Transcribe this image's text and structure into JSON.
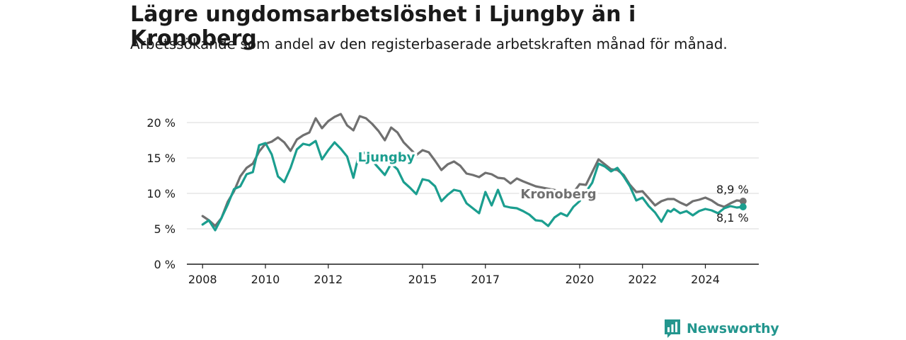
{
  "title": "Lägre ungdomsarbetslöshet i Ljungby än i Kronoberg",
  "subtitle": "Arbetssökande som andel av den registerbaserade arbetskraften månad för månad.",
  "brand": {
    "name": "Newsworthy",
    "icon": "bar-chart-speech-bubble-icon"
  },
  "colors": {
    "ljungby": "#1b9e8f",
    "kronoberg": "#707070",
    "grid": "#d9d9d9",
    "axis": "#1a1a1a"
  },
  "chart_data": {
    "type": "line",
    "title": "Lägre ungdomsarbetslöshet i Ljungby än i Kronoberg",
    "subtitle": "Arbetssökande som andel av den registerbaserade arbetskraften månad för månad.",
    "xlabel": "",
    "ylabel": "",
    "xlim": [
      2007.5,
      2025.7
    ],
    "ylim": [
      0,
      20
    ],
    "y_ticks": [
      {
        "value": 0,
        "label": "0 %"
      },
      {
        "value": 5,
        "label": "5 %"
      },
      {
        "value": 10,
        "label": "10 %"
      },
      {
        "value": 15,
        "label": "15 %"
      },
      {
        "value": 20,
        "label": "20 %"
      }
    ],
    "x_ticks": [
      {
        "value": 2008,
        "label": "2008"
      },
      {
        "value": 2010,
        "label": "2010"
      },
      {
        "value": 2012,
        "label": "2012"
      },
      {
        "value": 2015,
        "label": "2015"
      },
      {
        "value": 2017,
        "label": "2017"
      },
      {
        "value": 2020,
        "label": "2020"
      },
      {
        "value": 2022,
        "label": "2022"
      },
      {
        "value": 2024,
        "label": "2024"
      }
    ],
    "grid": "horizontal",
    "legend": "inline labels",
    "series": [
      {
        "name": "Kronoberg",
        "end_label": "8,9 %",
        "points": [
          [
            2008.0,
            6.8
          ],
          [
            2008.2,
            6.2
          ],
          [
            2008.4,
            5.4
          ],
          [
            2008.6,
            6.5
          ],
          [
            2008.8,
            8.8
          ],
          [
            2009.0,
            10.3
          ],
          [
            2009.2,
            12.4
          ],
          [
            2009.4,
            13.6
          ],
          [
            2009.6,
            14.2
          ],
          [
            2009.8,
            15.9
          ],
          [
            2010.0,
            17.0
          ],
          [
            2010.2,
            17.3
          ],
          [
            2010.4,
            17.9
          ],
          [
            2010.6,
            17.2
          ],
          [
            2010.8,
            16.0
          ],
          [
            2011.0,
            17.6
          ],
          [
            2011.2,
            18.2
          ],
          [
            2011.4,
            18.6
          ],
          [
            2011.6,
            20.6
          ],
          [
            2011.8,
            19.2
          ],
          [
            2012.0,
            20.2
          ],
          [
            2012.2,
            20.8
          ],
          [
            2012.4,
            21.2
          ],
          [
            2012.6,
            19.6
          ],
          [
            2012.8,
            18.9
          ],
          [
            2013.0,
            20.9
          ],
          [
            2013.2,
            20.6
          ],
          [
            2013.4,
            19.8
          ],
          [
            2013.6,
            18.8
          ],
          [
            2013.8,
            17.5
          ],
          [
            2014.0,
            19.3
          ],
          [
            2014.2,
            18.6
          ],
          [
            2014.4,
            17.2
          ],
          [
            2014.6,
            16.3
          ],
          [
            2014.8,
            15.4
          ],
          [
            2015.0,
            16.1
          ],
          [
            2015.2,
            15.8
          ],
          [
            2015.4,
            14.6
          ],
          [
            2015.6,
            13.3
          ],
          [
            2015.8,
            14.1
          ],
          [
            2016.0,
            14.5
          ],
          [
            2016.2,
            13.9
          ],
          [
            2016.4,
            12.8
          ],
          [
            2016.6,
            12.6
          ],
          [
            2016.8,
            12.3
          ],
          [
            2017.0,
            12.9
          ],
          [
            2017.2,
            12.7
          ],
          [
            2017.4,
            12.2
          ],
          [
            2017.6,
            12.1
          ],
          [
            2017.8,
            11.4
          ],
          [
            2018.0,
            12.1
          ],
          [
            2018.2,
            11.7
          ],
          [
            2018.6,
            11.0
          ],
          [
            2019.4,
            10.3
          ],
          [
            2019.8,
            10.1
          ],
          [
            2020.0,
            11.3
          ],
          [
            2020.2,
            11.2
          ],
          [
            2020.4,
            13.0
          ],
          [
            2020.6,
            14.8
          ],
          [
            2020.8,
            14.1
          ],
          [
            2021.0,
            13.4
          ],
          [
            2021.2,
            13.3
          ],
          [
            2021.4,
            12.6
          ],
          [
            2021.6,
            11.2
          ],
          [
            2021.8,
            10.2
          ],
          [
            2022.0,
            10.3
          ],
          [
            2022.2,
            9.3
          ],
          [
            2022.4,
            8.3
          ],
          [
            2022.6,
            8.9
          ],
          [
            2022.8,
            9.2
          ],
          [
            2023.0,
            9.2
          ],
          [
            2023.2,
            8.7
          ],
          [
            2023.4,
            8.3
          ],
          [
            2023.6,
            8.9
          ],
          [
            2023.8,
            9.1
          ],
          [
            2024.0,
            9.4
          ],
          [
            2024.2,
            9.0
          ],
          [
            2024.4,
            8.4
          ],
          [
            2024.6,
            8.1
          ],
          [
            2024.8,
            8.6
          ],
          [
            2025.0,
            9.0
          ],
          [
            2025.2,
            8.9
          ]
        ]
      },
      {
        "name": "Ljungby",
        "end_label": "8,1 %",
        "points": [
          [
            2008.0,
            5.6
          ],
          [
            2008.2,
            6.2
          ],
          [
            2008.4,
            4.8
          ],
          [
            2008.6,
            6.5
          ],
          [
            2008.8,
            8.4
          ],
          [
            2009.0,
            10.6
          ],
          [
            2009.2,
            11.0
          ],
          [
            2009.4,
            12.7
          ],
          [
            2009.6,
            13.0
          ],
          [
            2009.8,
            16.8
          ],
          [
            2010.0,
            17.1
          ],
          [
            2010.2,
            15.5
          ],
          [
            2010.4,
            12.4
          ],
          [
            2010.6,
            11.6
          ],
          [
            2010.8,
            13.6
          ],
          [
            2011.0,
            16.2
          ],
          [
            2011.2,
            17.0
          ],
          [
            2011.4,
            16.8
          ],
          [
            2011.6,
            17.4
          ],
          [
            2011.8,
            14.8
          ],
          [
            2012.0,
            16.1
          ],
          [
            2012.2,
            17.2
          ],
          [
            2012.4,
            16.3
          ],
          [
            2012.6,
            15.2
          ],
          [
            2012.8,
            12.2
          ],
          [
            2013.0,
            16.0
          ],
          [
            2013.2,
            15.6
          ],
          [
            2013.4,
            14.6
          ],
          [
            2013.6,
            13.6
          ],
          [
            2013.8,
            12.6
          ],
          [
            2014.0,
            14.2
          ],
          [
            2014.2,
            13.4
          ],
          [
            2014.4,
            11.6
          ],
          [
            2014.6,
            10.8
          ],
          [
            2014.8,
            9.9
          ],
          [
            2015.0,
            12.0
          ],
          [
            2015.2,
            11.8
          ],
          [
            2015.4,
            11.0
          ],
          [
            2015.6,
            8.9
          ],
          [
            2015.8,
            9.8
          ],
          [
            2016.0,
            10.5
          ],
          [
            2016.2,
            10.3
          ],
          [
            2016.4,
            8.6
          ],
          [
            2016.6,
            7.9
          ],
          [
            2016.8,
            7.2
          ],
          [
            2017.0,
            10.2
          ],
          [
            2017.2,
            8.3
          ],
          [
            2017.4,
            10.5
          ],
          [
            2017.6,
            8.2
          ],
          [
            2017.8,
            8.0
          ],
          [
            2018.0,
            7.9
          ],
          [
            2018.2,
            7.5
          ],
          [
            2018.4,
            7.0
          ],
          [
            2018.6,
            6.2
          ],
          [
            2018.8,
            6.1
          ],
          [
            2019.0,
            5.4
          ],
          [
            2019.2,
            6.6
          ],
          [
            2019.4,
            7.2
          ],
          [
            2019.6,
            6.8
          ],
          [
            2019.8,
            8.1
          ],
          [
            2020.0,
            8.9
          ],
          [
            2020.4,
            11.5
          ],
          [
            2020.6,
            14.2
          ],
          [
            2020.8,
            13.8
          ],
          [
            2021.0,
            13.1
          ],
          [
            2021.2,
            13.6
          ],
          [
            2021.4,
            12.4
          ],
          [
            2021.6,
            11.0
          ],
          [
            2021.8,
            9.0
          ],
          [
            2022.0,
            9.4
          ],
          [
            2022.2,
            8.2
          ],
          [
            2022.4,
            7.3
          ],
          [
            2022.6,
            6.0
          ],
          [
            2022.8,
            7.6
          ],
          [
            2022.9,
            7.4
          ],
          [
            2023.0,
            7.8
          ],
          [
            2023.2,
            7.2
          ],
          [
            2023.4,
            7.5
          ],
          [
            2023.6,
            6.9
          ],
          [
            2023.8,
            7.5
          ],
          [
            2024.0,
            7.8
          ],
          [
            2024.2,
            7.6
          ],
          [
            2024.4,
            7.2
          ],
          [
            2024.6,
            7.9
          ],
          [
            2024.8,
            8.2
          ],
          [
            2025.0,
            8.0
          ],
          [
            2025.2,
            8.1
          ]
        ]
      }
    ]
  }
}
